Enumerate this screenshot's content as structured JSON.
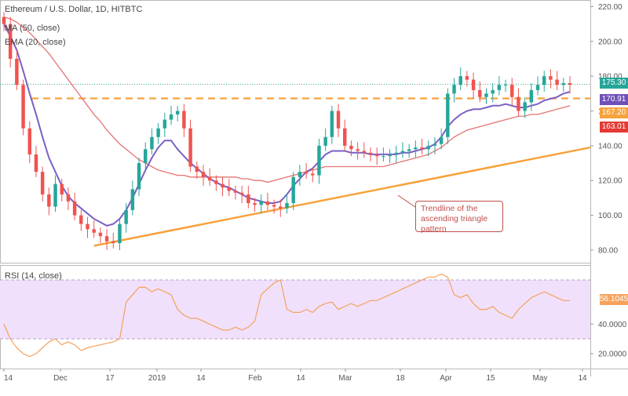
{
  "chart_data": [
    {
      "type": "candlestick",
      "title": "Ethereum / U.S. Dollar, 1D, HITBTC",
      "indicators": [
        "MA (50, close)",
        "EMA (20, close)"
      ],
      "ylim": [
        75,
        222
      ],
      "y_ticks": [
        "80.00",
        "100.00",
        "120.00",
        "140.00",
        "160.00",
        "180.00",
        "200.00",
        "220.00"
      ],
      "x_tick_labels": [
        "14",
        "Dec",
        "17",
        "2019",
        "14",
        "Feb",
        "14",
        "Mar",
        "18",
        "Apr",
        "15",
        "May",
        "14"
      ],
      "price_tags": {
        "last": "175.30",
        "ema20": "170.91",
        "level": "167.20",
        "ma50": "163.01"
      },
      "colors": {
        "up": "#26a69a",
        "down": "#ef5350",
        "ma50": "#e57373",
        "ema20": "#7b5fc4",
        "trend": "#f7a23c",
        "resistance": "#f7a23c"
      },
      "x": [
        "2018-11-14",
        "2018-11-16",
        "2018-11-18",
        "2018-11-20",
        "2018-11-22",
        "2018-11-24",
        "2018-11-26",
        "2018-11-28",
        "2018-11-30",
        "2018-12-02",
        "2018-12-04",
        "2018-12-06",
        "2018-12-08",
        "2018-12-10",
        "2018-12-12",
        "2018-12-14",
        "2018-12-16",
        "2018-12-18",
        "2018-12-20",
        "2018-12-22",
        "2018-12-24",
        "2018-12-26",
        "2018-12-28",
        "2018-12-30",
        "2019-01-01",
        "2019-01-03",
        "2019-01-05",
        "2019-01-07",
        "2019-01-09",
        "2019-01-11",
        "2019-01-13",
        "2019-01-15",
        "2019-01-17",
        "2019-01-19",
        "2019-01-21",
        "2019-01-23",
        "2019-01-25",
        "2019-01-27",
        "2019-01-29",
        "2019-01-31",
        "2019-02-02",
        "2019-02-04",
        "2019-02-06",
        "2019-02-08",
        "2019-02-10",
        "2019-02-12",
        "2019-02-14",
        "2019-02-16",
        "2019-02-18",
        "2019-02-20",
        "2019-02-22",
        "2019-02-24",
        "2019-02-26",
        "2019-02-28",
        "2019-03-02",
        "2019-03-04",
        "2019-03-06",
        "2019-03-08",
        "2019-03-10",
        "2019-03-12",
        "2019-03-14",
        "2019-03-16",
        "2019-03-18",
        "2019-03-20",
        "2019-03-22",
        "2019-03-24",
        "2019-03-26",
        "2019-03-28",
        "2019-03-30",
        "2019-04-01",
        "2019-04-03",
        "2019-04-05",
        "2019-04-07",
        "2019-04-09",
        "2019-04-11",
        "2019-04-13",
        "2019-04-15",
        "2019-04-17",
        "2019-04-19",
        "2019-04-21",
        "2019-04-23",
        "2019-04-25",
        "2019-04-27",
        "2019-04-29",
        "2019-05-01",
        "2019-05-03",
        "2019-05-05",
        "2019-05-07",
        "2019-05-09"
      ],
      "close": [
        210,
        190,
        175,
        150,
        135,
        125,
        112,
        105,
        118,
        112,
        108,
        100,
        95,
        92,
        90,
        88,
        85,
        84,
        95,
        103,
        115,
        130,
        138,
        145,
        150,
        155,
        158,
        160,
        150,
        128,
        125,
        122,
        120,
        118,
        116,
        114,
        113,
        112,
        107,
        106,
        108,
        106,
        105,
        104,
        107,
        122,
        125,
        124,
        123,
        140,
        145,
        160,
        150,
        140,
        138,
        137,
        136,
        135,
        134,
        134,
        135,
        136,
        137,
        138,
        139,
        138,
        140,
        141,
        145,
        170,
        175,
        180,
        178,
        172,
        168,
        170,
        172,
        175,
        175,
        168,
        160,
        165,
        172,
        175,
        180,
        178,
        175,
        176,
        175
      ],
      "ma50": [
        214,
        213,
        211,
        208,
        205,
        201,
        197,
        193,
        188,
        183,
        178,
        173,
        168,
        163,
        158,
        154,
        149,
        145,
        141,
        138,
        135,
        132,
        130,
        128,
        126,
        125,
        124,
        123,
        123,
        122,
        122,
        122,
        122,
        122,
        122,
        122,
        122,
        121,
        121,
        120,
        120,
        119,
        120,
        121,
        122,
        123,
        124,
        125,
        126,
        127,
        128,
        128,
        128,
        128,
        128,
        128,
        128,
        128,
        128,
        128,
        129,
        130,
        131,
        132,
        133,
        134,
        135,
        137,
        139,
        142,
        145,
        147,
        149,
        150,
        151,
        152,
        153,
        154,
        155,
        156,
        157,
        157,
        158,
        158,
        159,
        160,
        161,
        162,
        163
      ],
      "ema20": [
        210,
        203,
        195,
        183,
        170,
        158,
        145,
        133,
        125,
        117,
        111,
        107,
        104,
        101,
        98,
        96,
        94,
        95,
        98,
        103,
        110,
        118,
        126,
        133,
        139,
        143,
        143,
        138,
        134,
        130,
        127,
        124,
        121,
        119,
        117,
        116,
        114,
        112,
        110,
        109,
        108,
        107,
        107,
        108,
        112,
        117,
        121,
        125,
        127,
        131,
        135,
        137,
        137,
        137,
        136,
        136,
        136,
        135,
        135,
        135,
        135,
        135,
        136,
        136,
        137,
        138,
        139,
        141,
        145,
        151,
        155,
        158,
        160,
        161,
        161,
        162,
        163,
        163,
        164,
        163,
        162,
        162,
        163,
        164,
        166,
        167,
        168,
        170,
        171
      ],
      "resistance": 167.2,
      "trendline": {
        "start": [
          "2018-12-12",
          82.5
        ],
        "end": [
          "2019-05-12",
          139
        ]
      },
      "annotation": "Trendline of the\nascending triangle pattern"
    },
    {
      "type": "line",
      "title": "RSI (14, close)",
      "ylim": [
        12,
        78
      ],
      "y_ticks": [
        "20.0000",
        "40.0000"
      ],
      "band": [
        30,
        70
      ],
      "last_value": "56.1045",
      "colors": {
        "line": "#f5a25d",
        "band": "#f0e0fb",
        "tag": "#f5a25d"
      },
      "values": [
        40,
        30,
        24,
        20,
        18,
        20,
        24,
        28,
        30,
        26,
        28,
        26,
        22,
        24,
        25,
        26,
        27,
        28,
        30,
        55,
        60,
        65,
        65,
        62,
        64,
        62,
        60,
        50,
        46,
        44,
        44,
        42,
        40,
        38,
        36,
        36,
        38,
        36,
        38,
        42,
        60,
        64,
        68,
        70,
        50,
        48,
        48,
        50,
        48,
        52,
        54,
        55,
        50,
        52,
        54,
        52,
        54,
        56,
        56,
        58,
        60,
        62,
        64,
        66,
        68,
        70,
        72,
        72,
        74,
        72,
        60,
        58,
        60,
        54,
        50,
        50,
        52,
        48,
        46,
        44,
        50,
        54,
        58,
        60,
        62,
        60,
        58,
        56,
        56
      ]
    }
  ]
}
